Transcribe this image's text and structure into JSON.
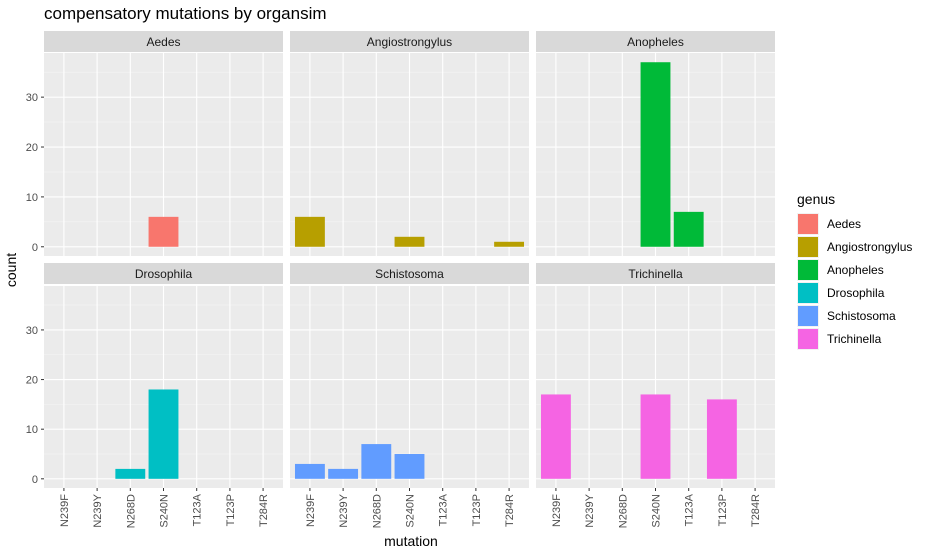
{
  "chart_data": {
    "type": "bar",
    "title": "compensatory mutations by organsim",
    "xlabel": "mutation",
    "ylabel": "count",
    "ylim": [
      -1.85,
      38.85
    ],
    "yticks": [
      0,
      10,
      20,
      30
    ],
    "categories": [
      "N239F",
      "N239Y",
      "N268D",
      "S240N",
      "T123A",
      "T123P",
      "T284R"
    ],
    "facet_layout": "2 rows x 3 columns",
    "legend": {
      "title": "genus",
      "placement": "right"
    },
    "series": [
      {
        "name": "Aedes",
        "color": "#F8766D",
        "values": [
          0,
          0,
          0,
          6,
          0,
          0,
          0
        ]
      },
      {
        "name": "Angiostrongylus",
        "color": "#B79F00",
        "values": [
          6,
          0,
          0,
          2,
          0,
          0,
          1
        ]
      },
      {
        "name": "Anopheles",
        "color": "#00BA38",
        "values": [
          0,
          0,
          0,
          37,
          7,
          0,
          0
        ]
      },
      {
        "name": "Drosophila",
        "color": "#00BFC4",
        "values": [
          0,
          0,
          2,
          18,
          0,
          0,
          0
        ]
      },
      {
        "name": "Schistosoma",
        "color": "#619CFF",
        "values": [
          3,
          2,
          7,
          5,
          0,
          0,
          0
        ]
      },
      {
        "name": "Trichinella",
        "color": "#F564E3",
        "values": [
          17,
          0,
          0,
          17,
          0,
          16,
          0
        ]
      }
    ]
  },
  "colors": {
    "panel_background": "#EBEBEB",
    "strip_background": "#D9D9D9",
    "grid_major": "#FFFFFF"
  }
}
